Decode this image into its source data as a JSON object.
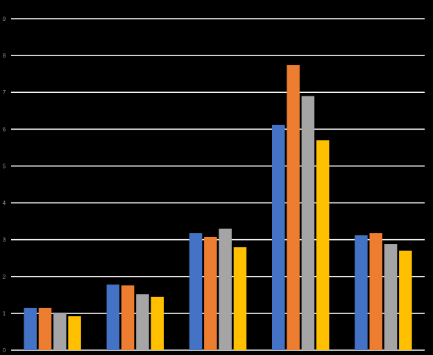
{
  "chart_data": {
    "type": "bar",
    "title": "",
    "xlabel": "",
    "ylabel": "",
    "ylim": [
      0,
      9
    ],
    "yticks": [
      "0",
      "1",
      "2",
      "3",
      "4",
      "5",
      "6",
      "7",
      "8",
      "9"
    ],
    "grid": true,
    "legend": "none",
    "categories": [
      "",
      "",
      "",
      "",
      ""
    ],
    "series": [
      {
        "color": "#4472C4",
        "values": [
          1.15,
          1.78,
          3.18,
          6.12,
          3.12
        ]
      },
      {
        "color": "#ED7D31",
        "values": [
          1.15,
          1.76,
          3.07,
          7.74,
          3.18
        ]
      },
      {
        "color": "#A5A5A5",
        "values": [
          1.02,
          1.52,
          3.3,
          6.9,
          2.88
        ]
      },
      {
        "color": "#FFC000",
        "values": [
          0.92,
          1.45,
          2.8,
          5.7,
          2.7
        ]
      }
    ]
  }
}
